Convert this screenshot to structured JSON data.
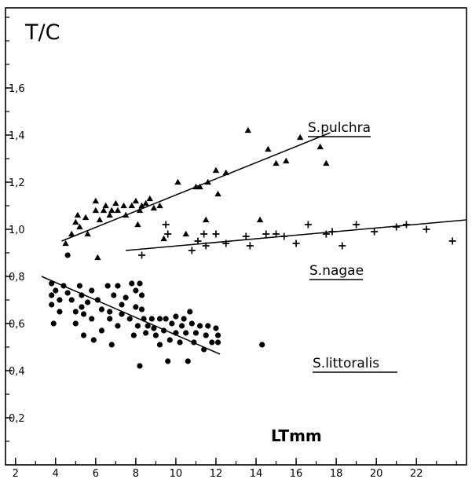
{
  "chart_data": {
    "type": "scatter",
    "ylabel": "T/C",
    "xlabel": "LTmm",
    "xlim": [
      1.5,
      24.5
    ],
    "ylim": [
      0.0,
      1.94
    ],
    "x_ticks": [
      2,
      4,
      6,
      8,
      10,
      12,
      14,
      16,
      18,
      20,
      22
    ],
    "x_tick_labels": [
      "2",
      "4",
      "6",
      "8",
      "10",
      "12",
      "14",
      "16",
      "18",
      "20",
      "22"
    ],
    "y_ticks": [
      0.2,
      0.4,
      0.6,
      0.8,
      1.0,
      1.2,
      1.4,
      1.6
    ],
    "y_tick_labels": [
      "0,2",
      "0,4",
      "0,6",
      "0,8",
      "1,0",
      "1,2",
      "1,4",
      "1,6"
    ],
    "grid": false,
    "series": [
      {
        "name": "S.pulchra",
        "marker": "triangle",
        "points": [
          [
            4.5,
            0.94
          ],
          [
            4.8,
            0.98
          ],
          [
            5.0,
            1.03
          ],
          [
            5.1,
            1.06
          ],
          [
            5.2,
            1.01
          ],
          [
            5.5,
            1.05
          ],
          [
            5.6,
            0.98
          ],
          [
            6.0,
            1.08
          ],
          [
            6.0,
            1.12
          ],
          [
            6.1,
            0.88
          ],
          [
            6.2,
            1.04
          ],
          [
            6.4,
            1.08
          ],
          [
            6.5,
            1.1
          ],
          [
            6.7,
            1.06
          ],
          [
            6.8,
            1.08
          ],
          [
            7.0,
            1.11
          ],
          [
            7.1,
            1.08
          ],
          [
            7.4,
            1.1
          ],
          [
            7.5,
            1.06
          ],
          [
            7.8,
            1.1
          ],
          [
            8.0,
            1.12
          ],
          [
            8.1,
            1.02
          ],
          [
            8.2,
            1.08
          ],
          [
            8.3,
            1.1
          ],
          [
            8.5,
            1.11
          ],
          [
            8.7,
            1.13
          ],
          [
            8.9,
            1.09
          ],
          [
            9.2,
            1.1
          ],
          [
            9.4,
            0.96
          ],
          [
            10.1,
            1.2
          ],
          [
            10.5,
            0.98
          ],
          [
            11.0,
            1.18
          ],
          [
            11.2,
            1.18
          ],
          [
            11.5,
            1.04
          ],
          [
            11.6,
            1.2
          ],
          [
            12.0,
            1.25
          ],
          [
            12.1,
            1.15
          ],
          [
            12.5,
            1.24
          ],
          [
            13.6,
            1.42
          ],
          [
            14.2,
            1.04
          ],
          [
            14.6,
            1.34
          ],
          [
            15.0,
            1.28
          ],
          [
            15.5,
            1.29
          ],
          [
            16.2,
            1.39
          ],
          [
            17.2,
            1.35
          ],
          [
            17.5,
            1.28
          ]
        ]
      },
      {
        "name": "S.nagae",
        "marker": "plus",
        "points": [
          [
            8.3,
            0.89
          ],
          [
            9.5,
            1.02
          ],
          [
            9.6,
            0.98
          ],
          [
            10.8,
            0.91
          ],
          [
            11.1,
            0.95
          ],
          [
            11.4,
            0.98
          ],
          [
            11.5,
            0.93
          ],
          [
            12.0,
            0.98
          ],
          [
            12.5,
            0.94
          ],
          [
            13.5,
            0.97
          ],
          [
            13.7,
            0.93
          ],
          [
            14.5,
            0.98
          ],
          [
            15.0,
            0.98
          ],
          [
            15.4,
            0.97
          ],
          [
            16.0,
            0.94
          ],
          [
            16.6,
            1.02
          ],
          [
            17.5,
            0.98
          ],
          [
            17.8,
            0.99
          ],
          [
            18.3,
            0.93
          ],
          [
            19.0,
            1.02
          ],
          [
            19.9,
            0.99
          ],
          [
            21.0,
            1.01
          ],
          [
            21.5,
            1.02
          ],
          [
            22.5,
            1.0
          ],
          [
            23.8,
            0.95
          ]
        ]
      },
      {
        "name": "S.littoralis",
        "marker": "circle",
        "points": [
          [
            3.8,
            0.77
          ],
          [
            3.8,
            0.72
          ],
          [
            3.8,
            0.68
          ],
          [
            3.9,
            0.6
          ],
          [
            4.0,
            0.74
          ],
          [
            4.2,
            0.7
          ],
          [
            4.2,
            0.65
          ],
          [
            4.4,
            0.76
          ],
          [
            4.6,
            0.73
          ],
          [
            4.6,
            0.89
          ],
          [
            4.8,
            0.7
          ],
          [
            5.0,
            0.65
          ],
          [
            5.0,
            0.6
          ],
          [
            5.2,
            0.76
          ],
          [
            5.3,
            0.72
          ],
          [
            5.3,
            0.67
          ],
          [
            5.4,
            0.64
          ],
          [
            5.4,
            0.55
          ],
          [
            5.6,
            0.69
          ],
          [
            5.8,
            0.74
          ],
          [
            5.8,
            0.62
          ],
          [
            5.9,
            0.53
          ],
          [
            6.1,
            0.7
          ],
          [
            6.3,
            0.66
          ],
          [
            6.3,
            0.57
          ],
          [
            6.6,
            0.76
          ],
          [
            6.7,
            0.65
          ],
          [
            6.7,
            0.62
          ],
          [
            6.8,
            0.51
          ],
          [
            6.9,
            0.72
          ],
          [
            7.1,
            0.76
          ],
          [
            7.1,
            0.59
          ],
          [
            7.3,
            0.68
          ],
          [
            7.3,
            0.64
          ],
          [
            7.5,
            0.71
          ],
          [
            7.7,
            0.62
          ],
          [
            7.8,
            0.77
          ],
          [
            7.9,
            0.55
          ],
          [
            8.0,
            0.74
          ],
          [
            8.0,
            0.67
          ],
          [
            8.1,
            0.59
          ],
          [
            8.2,
            0.77
          ],
          [
            8.2,
            0.42
          ],
          [
            8.3,
            0.72
          ],
          [
            8.3,
            0.66
          ],
          [
            8.4,
            0.62
          ],
          [
            8.5,
            0.56
          ],
          [
            8.6,
            0.59
          ],
          [
            8.8,
            0.62
          ],
          [
            8.9,
            0.58
          ],
          [
            9.0,
            0.55
          ],
          [
            9.2,
            0.62
          ],
          [
            9.2,
            0.51
          ],
          [
            9.4,
            0.57
          ],
          [
            9.5,
            0.62
          ],
          [
            9.6,
            0.44
          ],
          [
            9.7,
            0.53
          ],
          [
            9.8,
            0.6
          ],
          [
            10.0,
            0.63
          ],
          [
            10.0,
            0.56
          ],
          [
            10.2,
            0.52
          ],
          [
            10.3,
            0.59
          ],
          [
            10.4,
            0.62
          ],
          [
            10.5,
            0.56
          ],
          [
            10.6,
            0.44
          ],
          [
            10.7,
            0.65
          ],
          [
            10.8,
            0.6
          ],
          [
            10.9,
            0.52
          ],
          [
            11.0,
            0.56
          ],
          [
            11.2,
            0.59
          ],
          [
            11.4,
            0.49
          ],
          [
            11.5,
            0.55
          ],
          [
            11.6,
            0.59
          ],
          [
            11.8,
            0.52
          ],
          [
            12.0,
            0.58
          ],
          [
            12.1,
            0.55
          ],
          [
            12.1,
            0.52
          ],
          [
            14.3,
            0.51
          ]
        ]
      }
    ],
    "trend_lines": [
      {
        "series": "S.pulchra",
        "from": [
          4.3,
          0.95
        ],
        "to": [
          17.7,
          1.41
        ]
      },
      {
        "series": "S.nagae",
        "from": [
          7.5,
          0.91
        ],
        "to": [
          24.5,
          1.04
        ]
      },
      {
        "series": "S.littoralis",
        "from": [
          3.3,
          0.8
        ],
        "to": [
          12.2,
          0.47
        ]
      }
    ]
  }
}
